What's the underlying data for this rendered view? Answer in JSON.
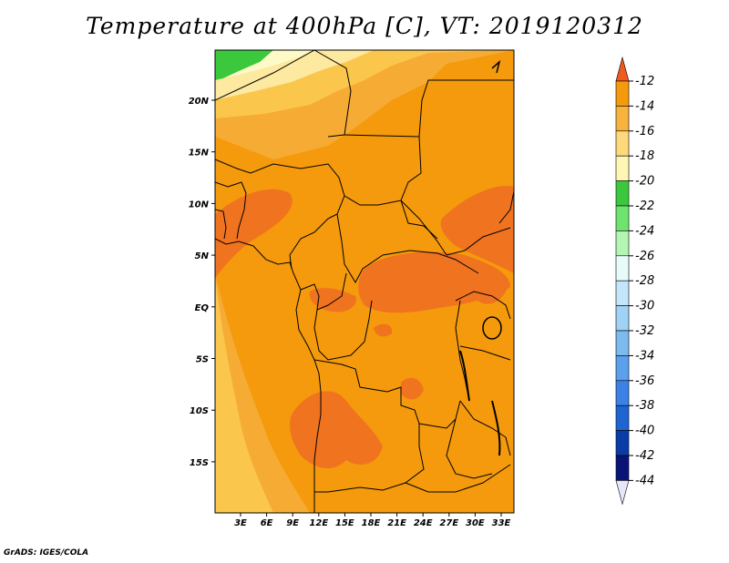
{
  "title": "Temperature at 400hPa [C], VT: 2019120312",
  "credit": "GrADS: IGES/COLA",
  "map": {
    "lon_labels": [
      "3E",
      "6E",
      "9E",
      "12E",
      "15E",
      "18E",
      "21E",
      "24E",
      "27E",
      "30E",
      "33E"
    ],
    "lat_labels": [
      "20N",
      "15N",
      "10N",
      "5N",
      "EQ",
      "5S",
      "10S",
      "15S"
    ],
    "fill_colors": {
      "-22": "#fefac8",
      "-20": "#fde9a0",
      "-18": "#fbc64c",
      "-16": "#f6ab34",
      "-14": "#f49a0c",
      "-12": "#f07320",
      "-24_green": "#3cc83c"
    }
  },
  "colorbar": {
    "labels": [
      "-12",
      "-14",
      "-16",
      "-18",
      "-20",
      "-22",
      "-24",
      "-26",
      "-28",
      "-30",
      "-32",
      "-34",
      "-36",
      "-38",
      "-40",
      "-42",
      "-44"
    ],
    "colors": [
      "#f05a1e",
      "#f49a0c",
      "#f7b33c",
      "#fdd97a",
      "#fef6b4",
      "#3cc83c",
      "#6ee46e",
      "#b4f5b4",
      "#e6fbfa",
      "#c3e6fa",
      "#a0d2f5",
      "#7cbaf0",
      "#5aa0ec",
      "#3c82e6",
      "#1e64d2",
      "#0a3ca8",
      "#0a1478"
    ],
    "end_low_color": "#e6e6fa",
    "end_high_color": "#f05a1e"
  }
}
